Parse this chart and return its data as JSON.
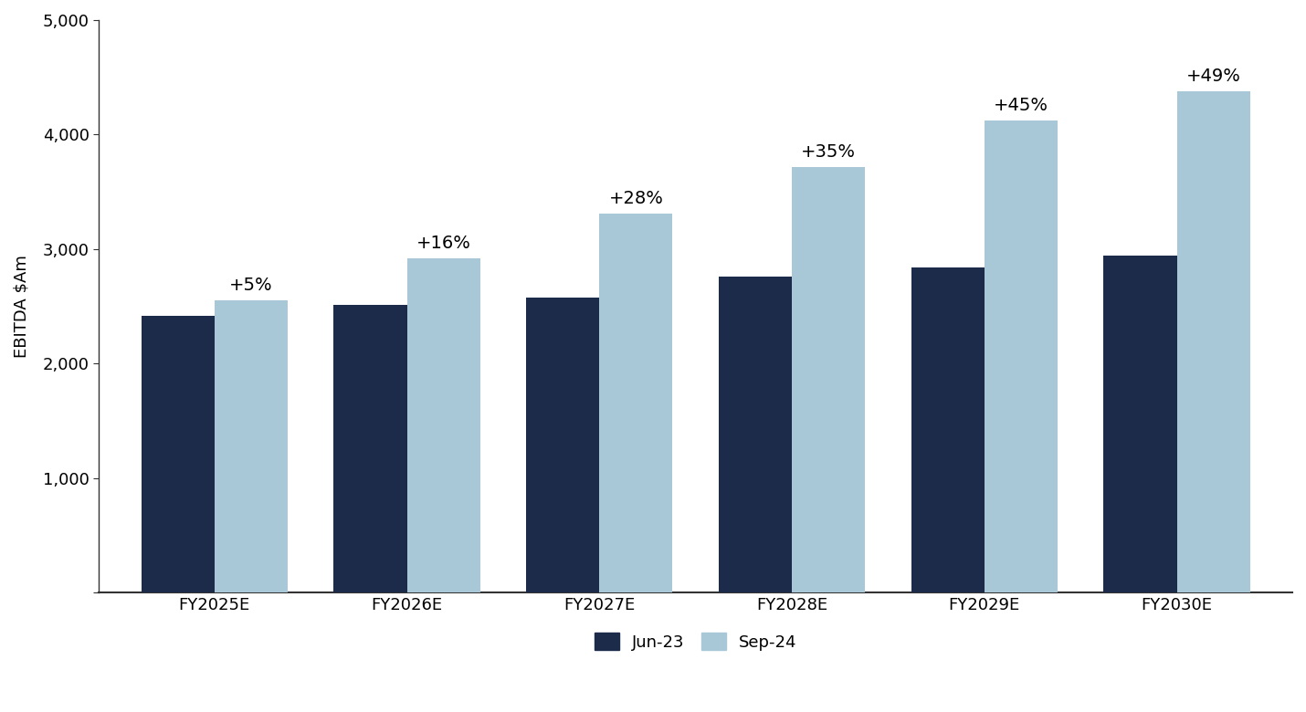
{
  "categories": [
    "FY2025E",
    "FY2026E",
    "FY2027E",
    "FY2028E",
    "FY2029E",
    "FY2030E"
  ],
  "jun23_values": [
    2420,
    2510,
    2580,
    2760,
    2840,
    2940
  ],
  "sep24_values": [
    2550,
    2920,
    3310,
    3720,
    4120,
    4380
  ],
  "pct_labels": [
    "+5%",
    "+16%",
    "+28%",
    "+35%",
    "+45%",
    "+49%"
  ],
  "jun23_color": "#1c2b4a",
  "sep24_color": "#a8c8d8",
  "ylabel": "EBITDA $Am",
  "ylim": [
    0,
    5000
  ],
  "yticks": [
    0,
    1000,
    2000,
    3000,
    4000,
    5000
  ],
  "legend_labels": [
    "Jun-23",
    "Sep-24"
  ],
  "bar_width": 0.38,
  "background_color": "#ffffff",
  "tick_fontsize": 13,
  "label_fontsize": 13,
  "pct_fontsize": 14,
  "legend_fontsize": 13
}
